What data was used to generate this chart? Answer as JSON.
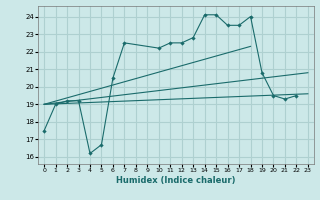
{
  "xlabel": "Humidex (Indice chaleur)",
  "bg_color": "#cce8e8",
  "grid_color": "#aed0d0",
  "line_color": "#1a6b6b",
  "xlim": [
    -0.5,
    23.5
  ],
  "ylim": [
    15.6,
    24.6
  ],
  "yticks": [
    16,
    17,
    18,
    19,
    20,
    21,
    22,
    23,
    24
  ],
  "xticks": [
    0,
    1,
    2,
    3,
    4,
    5,
    6,
    7,
    8,
    9,
    10,
    11,
    12,
    13,
    14,
    15,
    16,
    17,
    18,
    19,
    20,
    21,
    22,
    23
  ],
  "jagged_x": [
    0,
    1,
    2,
    3,
    4,
    5,
    6,
    7,
    10,
    11,
    12,
    13,
    14,
    15,
    16,
    17,
    18,
    19,
    20,
    21,
    22
  ],
  "jagged_y": [
    17.5,
    19.0,
    19.2,
    19.2,
    16.2,
    16.7,
    20.5,
    22.5,
    22.2,
    22.5,
    22.5,
    22.8,
    24.1,
    24.1,
    23.5,
    23.5,
    24.0,
    20.8,
    19.5,
    19.3,
    19.5
  ],
  "line1_x": [
    0,
    18
  ],
  "line1_y": [
    19.0,
    22.3
  ],
  "line2_x": [
    0,
    23
  ],
  "line2_y": [
    19.0,
    20.8
  ],
  "line3_x": [
    0,
    23
  ],
  "line3_y": [
    19.0,
    19.6
  ]
}
